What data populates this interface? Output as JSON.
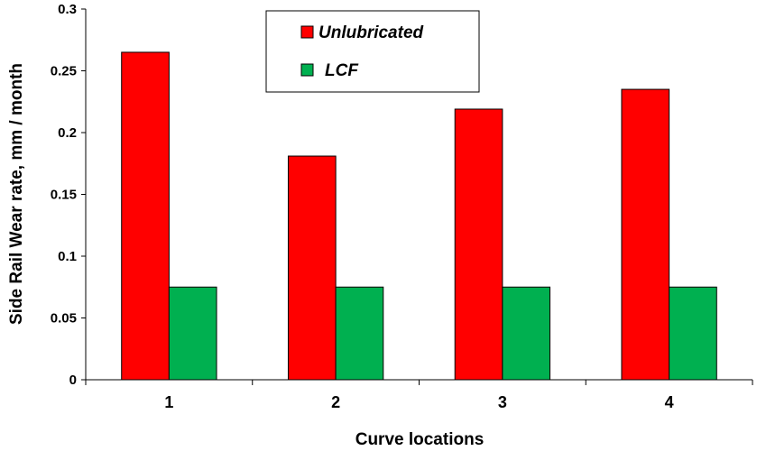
{
  "chart_data": {
    "type": "bar",
    "categories": [
      "1",
      "2",
      "3",
      "4"
    ],
    "series": [
      {
        "name": "Unlubricated",
        "color": "#ff0000",
        "values": [
          0.265,
          0.181,
          0.219,
          0.235
        ]
      },
      {
        "name": "LCF",
        "color": "#00b050",
        "values": [
          0.075,
          0.075,
          0.075,
          0.075
        ]
      }
    ],
    "title": "",
    "xlabel": "Curve locations",
    "ylabel": "Side Rail Wear rate, mm / month",
    "ylim": [
      0,
      0.3
    ],
    "yticks": [
      "0",
      "0.05",
      "0.1",
      "0.15",
      "0.2",
      "0.25",
      "0.3"
    ],
    "grid": false,
    "legend_position": "top-center"
  }
}
